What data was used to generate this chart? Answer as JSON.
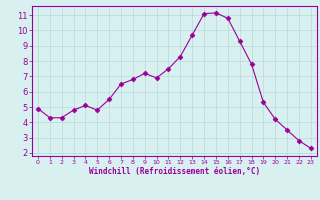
{
  "x": [
    0,
    1,
    2,
    3,
    4,
    5,
    6,
    7,
    8,
    9,
    10,
    11,
    12,
    13,
    14,
    15,
    16,
    17,
    18,
    19,
    20,
    21,
    22,
    23
  ],
  "y": [
    4.9,
    4.3,
    4.3,
    4.8,
    5.1,
    4.8,
    5.5,
    6.5,
    6.8,
    7.2,
    6.9,
    7.5,
    8.3,
    9.7,
    11.1,
    11.15,
    10.8,
    9.3,
    7.8,
    5.3,
    4.2,
    3.5,
    2.8,
    2.3
  ],
  "line_color": "#990099",
  "marker": "D",
  "marker_size": 2.5,
  "bg_color": "#d8f0f0",
  "grid_color": "#b8dada",
  "xlabel": "Windchill (Refroidissement éolien,°C)",
  "xlim": [
    -0.5,
    23.5
  ],
  "ylim": [
    1.8,
    11.6
  ],
  "yticks": [
    2,
    3,
    4,
    5,
    6,
    7,
    8,
    9,
    10,
    11
  ],
  "xticks": [
    0,
    1,
    2,
    3,
    4,
    5,
    6,
    7,
    8,
    9,
    10,
    11,
    12,
    13,
    14,
    15,
    16,
    17,
    18,
    19,
    20,
    21,
    22,
    23
  ],
  "tick_color": "#990099",
  "label_color": "#990099",
  "spine_color": "#990099"
}
